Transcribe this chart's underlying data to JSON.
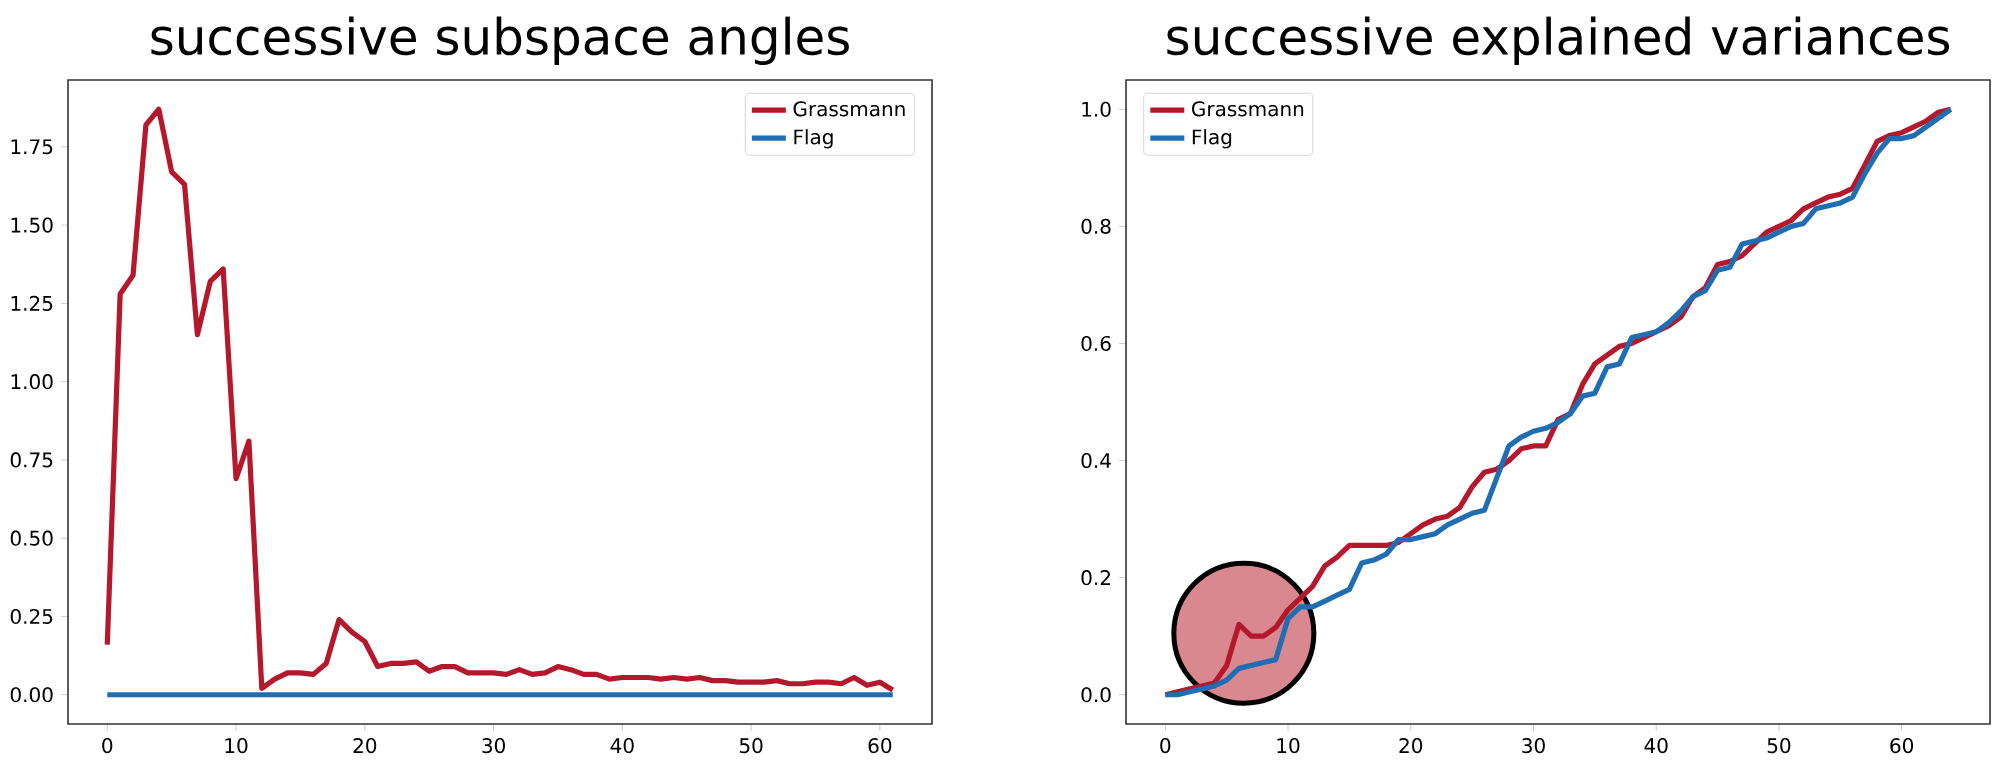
{
  "chart_data": [
    {
      "type": "line",
      "title": "successive subspace angles",
      "x": [
        0,
        1,
        2,
        3,
        4,
        5,
        6,
        7,
        8,
        9,
        10,
        11,
        12,
        13,
        14,
        15,
        16,
        17,
        18,
        19,
        20,
        21,
        22,
        23,
        24,
        25,
        26,
        27,
        28,
        29,
        30,
        31,
        32,
        33,
        34,
        35,
        36,
        37,
        38,
        39,
        40,
        41,
        42,
        43,
        44,
        45,
        46,
        47,
        48,
        49,
        50,
        51,
        52,
        53,
        54,
        55,
        56,
        57,
        58,
        59,
        60,
        61
      ],
      "series": [
        {
          "name": "Grassmann",
          "color": "#b5172b",
          "values": [
            0.16,
            1.28,
            1.34,
            1.82,
            1.87,
            1.67,
            1.63,
            1.15,
            1.32,
            1.36,
            0.69,
            0.81,
            0.02,
            0.05,
            0.07,
            0.07,
            0.065,
            0.1,
            0.24,
            0.2,
            0.17,
            0.09,
            0.1,
            0.1,
            0.105,
            0.075,
            0.09,
            0.09,
            0.07,
            0.07,
            0.07,
            0.065,
            0.08,
            0.065,
            0.07,
            0.09,
            0.08,
            0.065,
            0.065,
            0.05,
            0.055,
            0.055,
            0.055,
            0.05,
            0.055,
            0.05,
            0.055,
            0.045,
            0.045,
            0.04,
            0.04,
            0.04,
            0.045,
            0.035,
            0.035,
            0.04,
            0.04,
            0.035,
            0.055,
            0.03,
            0.04,
            0.015
          ]
        },
        {
          "name": "Flag",
          "color": "#1f6db3",
          "values": [
            0,
            0,
            0,
            0,
            0,
            0,
            0,
            0,
            0,
            0,
            0,
            0,
            0,
            0,
            0,
            0,
            0,
            0,
            0,
            0,
            0,
            0,
            0,
            0,
            0,
            0,
            0,
            0,
            0,
            0,
            0,
            0,
            0,
            0,
            0,
            0,
            0,
            0,
            0,
            0,
            0,
            0,
            0,
            0,
            0,
            0,
            0,
            0,
            0,
            0,
            0,
            0,
            0,
            0,
            0,
            0,
            0,
            0,
            0,
            0,
            0,
            0
          ]
        }
      ],
      "xlim": [
        -3.05,
        64.05
      ],
      "ylim": [
        -0.0935,
        1.9635
      ],
      "xticks": [
        0,
        10,
        20,
        30,
        40,
        50,
        60
      ],
      "yticks": [
        {
          "value": 0,
          "label": "0.00"
        },
        {
          "value": 0.25,
          "label": "0.25"
        },
        {
          "value": 0.5,
          "label": "0.50"
        },
        {
          "value": 0.75,
          "label": "0.75"
        },
        {
          "value": 1,
          "label": "1.00"
        },
        {
          "value": 1.25,
          "label": "1.25"
        },
        {
          "value": 1.5,
          "label": "1.50"
        },
        {
          "value": 1.75,
          "label": "1.75"
        }
      ],
      "grid": false,
      "legend": "top right",
      "marker": "none",
      "line_style": "solid"
    },
    {
      "type": "line",
      "title": "successive explained variances",
      "x": [
        0,
        1,
        2,
        3,
        4,
        5,
        6,
        7,
        8,
        9,
        10,
        11,
        12,
        13,
        14,
        15,
        16,
        17,
        18,
        19,
        20,
        21,
        22,
        23,
        24,
        25,
        26,
        27,
        28,
        29,
        30,
        31,
        32,
        33,
        34,
        35,
        36,
        37,
        38,
        39,
        40,
        41,
        42,
        43,
        44,
        45,
        46,
        47,
        48,
        49,
        50,
        51,
        52,
        53,
        54,
        55,
        56,
        57,
        58,
        59,
        60,
        61,
        62,
        63,
        64
      ],
      "series": [
        {
          "name": "Grassmann",
          "color": "#b5172b",
          "values": [
            0,
            0.005,
            0.01,
            0.015,
            0.02,
            0.05,
            0.12,
            0.1,
            0.1,
            0.115,
            0.145,
            0.165,
            0.185,
            0.22,
            0.235,
            0.255,
            0.255,
            0.255,
            0.255,
            0.26,
            0.275,
            0.29,
            0.3,
            0.305,
            0.32,
            0.355,
            0.38,
            0.385,
            0.4,
            0.42,
            0.425,
            0.425,
            0.47,
            0.48,
            0.53,
            0.565,
            0.58,
            0.595,
            0.6,
            0.61,
            0.62,
            0.63,
            0.645,
            0.68,
            0.695,
            0.735,
            0.74,
            0.75,
            0.77,
            0.79,
            0.8,
            0.81,
            0.83,
            0.84,
            0.85,
            0.855,
            0.865,
            0.905,
            0.945,
            0.955,
            0.96,
            0.97,
            0.98,
            0.995,
            1.0
          ]
        },
        {
          "name": "Flag",
          "color": "#1f6db3",
          "values": [
            0,
            0,
            0.005,
            0.01,
            0.015,
            0.025,
            0.045,
            0.05,
            0.055,
            0.06,
            0.13,
            0.15,
            0.15,
            0.16,
            0.17,
            0.18,
            0.225,
            0.23,
            0.24,
            0.265,
            0.265,
            0.27,
            0.275,
            0.29,
            0.3,
            0.31,
            0.315,
            0.37,
            0.425,
            0.44,
            0.45,
            0.455,
            0.465,
            0.48,
            0.51,
            0.515,
            0.56,
            0.565,
            0.61,
            0.615,
            0.62,
            0.635,
            0.655,
            0.68,
            0.69,
            0.725,
            0.73,
            0.77,
            0.775,
            0.78,
            0.79,
            0.8,
            0.805,
            0.83,
            0.835,
            0.84,
            0.85,
            0.89,
            0.925,
            0.95,
            0.95,
            0.955,
            0.97,
            0.985,
            1.0
          ]
        }
      ],
      "xlim": [
        -3.2,
        67.2
      ],
      "ylim": [
        -0.05,
        1.05
      ],
      "xticks": [
        0,
        10,
        20,
        30,
        40,
        50,
        60
      ],
      "yticks": [
        {
          "value": 0,
          "label": "0.0"
        },
        {
          "value": 0.2,
          "label": "0.2"
        },
        {
          "value": 0.4,
          "label": "0.4"
        },
        {
          "value": 0.6,
          "label": "0.6"
        },
        {
          "value": 0.8,
          "label": "0.8"
        },
        {
          "value": 1,
          "label": "1.0"
        }
      ],
      "grid": false,
      "legend": "top left",
      "marker": "none",
      "line_style": "solid"
    }
  ]
}
